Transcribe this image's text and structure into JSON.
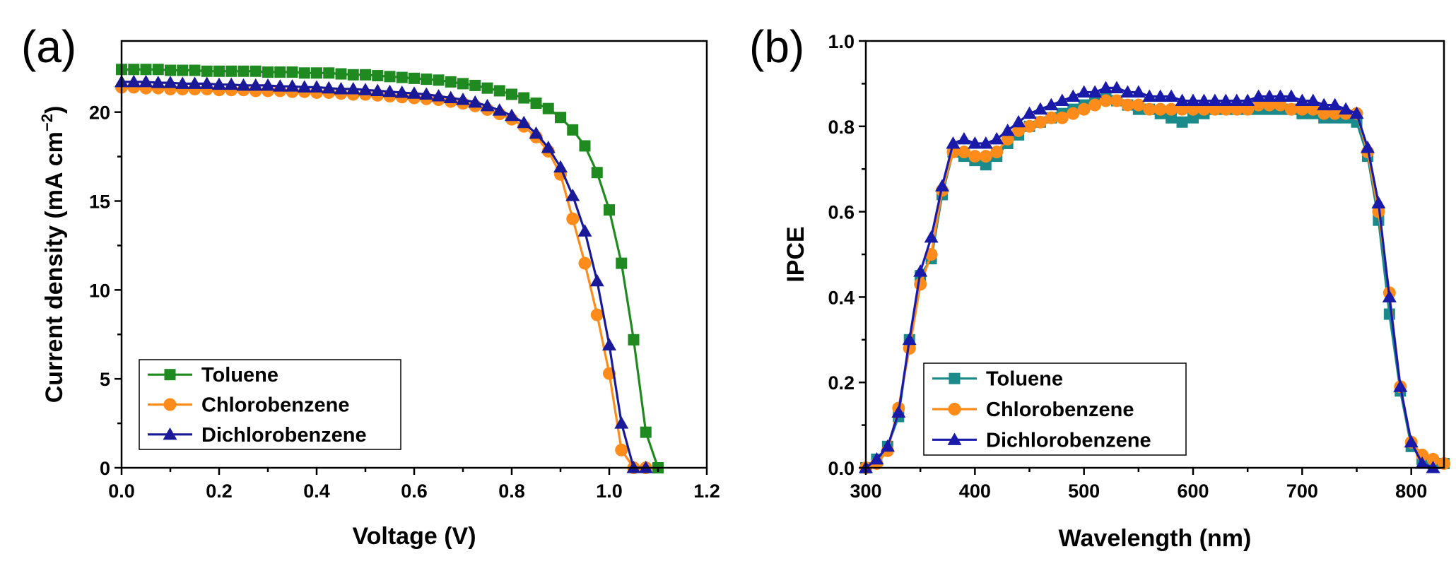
{
  "chart_data": [
    {
      "type": "line",
      "panel_label": "(a)",
      "xlabel": "Voltage (V)",
      "ylabel": "Current density (mA cm⁻²)",
      "ylabel_main": "Current density (mA cm",
      "ylabel_sup": "−2",
      "ylabel_end": ")",
      "xlim": [
        0.0,
        1.2
      ],
      "ylim": [
        0,
        24
      ],
      "xticks": [
        0.0,
        0.2,
        0.4,
        0.6,
        0.8,
        1.0,
        1.2
      ],
      "xtick_labels": [
        "0.0",
        "0.2",
        "0.4",
        "0.6",
        "0.8",
        "1.0",
        "1.2"
      ],
      "yticks": [
        0,
        5,
        10,
        15,
        20
      ],
      "ytick_labels": [
        "0",
        "5",
        "10",
        "15",
        "20"
      ],
      "legend_position": "bottom-left",
      "grid": false,
      "series": [
        {
          "name": "Toluene",
          "color": "#1f8a1f",
          "marker": "square",
          "x": [
            0.0,
            0.025,
            0.05,
            0.075,
            0.1,
            0.125,
            0.15,
            0.175,
            0.2,
            0.225,
            0.25,
            0.275,
            0.3,
            0.325,
            0.35,
            0.375,
            0.4,
            0.425,
            0.45,
            0.475,
            0.5,
            0.525,
            0.55,
            0.575,
            0.6,
            0.625,
            0.65,
            0.675,
            0.7,
            0.725,
            0.75,
            0.775,
            0.8,
            0.825,
            0.85,
            0.875,
            0.9,
            0.925,
            0.95,
            0.975,
            1.0,
            1.025,
            1.05,
            1.075,
            1.1
          ],
          "y": [
            22.4,
            22.4,
            22.4,
            22.4,
            22.35,
            22.35,
            22.35,
            22.3,
            22.3,
            22.3,
            22.3,
            22.3,
            22.25,
            22.25,
            22.25,
            22.2,
            22.2,
            22.2,
            22.15,
            22.1,
            22.1,
            22.05,
            22.0,
            21.95,
            21.9,
            21.85,
            21.8,
            21.7,
            21.6,
            21.5,
            21.35,
            21.2,
            21.0,
            20.8,
            20.5,
            20.2,
            19.7,
            19.0,
            18.1,
            16.6,
            14.5,
            11.5,
            7.2,
            2.0,
            0.0
          ]
        },
        {
          "name": "Chlorobenzene",
          "color": "#ff8c1a",
          "marker": "circle",
          "x": [
            0.0,
            0.025,
            0.05,
            0.075,
            0.1,
            0.125,
            0.15,
            0.175,
            0.2,
            0.225,
            0.25,
            0.275,
            0.3,
            0.325,
            0.35,
            0.375,
            0.4,
            0.425,
            0.45,
            0.475,
            0.5,
            0.525,
            0.55,
            0.575,
            0.6,
            0.625,
            0.65,
            0.675,
            0.7,
            0.725,
            0.75,
            0.775,
            0.8,
            0.825,
            0.85,
            0.875,
            0.9,
            0.925,
            0.95,
            0.975,
            1.0,
            1.025,
            1.05,
            1.075
          ],
          "y": [
            21.4,
            21.4,
            21.35,
            21.35,
            21.3,
            21.3,
            21.3,
            21.3,
            21.25,
            21.25,
            21.25,
            21.2,
            21.2,
            21.2,
            21.15,
            21.15,
            21.1,
            21.1,
            21.05,
            21.0,
            21.0,
            20.95,
            20.9,
            20.85,
            20.8,
            20.75,
            20.7,
            20.6,
            20.5,
            20.35,
            20.15,
            19.9,
            19.6,
            19.2,
            18.6,
            17.8,
            16.5,
            14.0,
            11.5,
            8.6,
            5.3,
            1.0,
            0.0,
            0.0
          ]
        },
        {
          "name": "Dichlorobenzene",
          "color": "#1a1a99",
          "marker": "triangle",
          "x": [
            0.0,
            0.025,
            0.05,
            0.075,
            0.1,
            0.125,
            0.15,
            0.175,
            0.2,
            0.225,
            0.25,
            0.275,
            0.3,
            0.325,
            0.35,
            0.375,
            0.4,
            0.425,
            0.45,
            0.475,
            0.5,
            0.525,
            0.55,
            0.575,
            0.6,
            0.625,
            0.65,
            0.675,
            0.7,
            0.725,
            0.75,
            0.775,
            0.8,
            0.825,
            0.85,
            0.875,
            0.9,
            0.925,
            0.95,
            0.975,
            1.0,
            1.025,
            1.05,
            1.075
          ],
          "y": [
            21.7,
            21.7,
            21.7,
            21.65,
            21.65,
            21.6,
            21.6,
            21.6,
            21.55,
            21.55,
            21.5,
            21.5,
            21.5,
            21.45,
            21.45,
            21.4,
            21.4,
            21.35,
            21.3,
            21.3,
            21.25,
            21.2,
            21.15,
            21.1,
            21.05,
            21.0,
            20.9,
            20.8,
            20.7,
            20.55,
            20.35,
            20.1,
            19.8,
            19.4,
            18.8,
            18.0,
            16.9,
            15.3,
            13.3,
            10.5,
            6.9,
            2.5,
            0.0,
            0.0
          ]
        }
      ]
    },
    {
      "type": "line",
      "panel_label": "(b)",
      "xlabel": "Wavelength (nm)",
      "ylabel": "IPCE",
      "xlim": [
        300,
        830
      ],
      "ylim": [
        0.0,
        1.0
      ],
      "xticks": [
        300,
        400,
        500,
        600,
        700,
        800
      ],
      "xtick_labels": [
        "300",
        "400",
        "500",
        "600",
        "700",
        "800"
      ],
      "yticks": [
        0.0,
        0.2,
        0.4,
        0.6,
        0.8,
        1.0
      ],
      "ytick_labels": [
        "0.0",
        "0.2",
        "0.4",
        "0.6",
        "0.8",
        "1.0"
      ],
      "legend_position": "bottom-left",
      "grid": false,
      "series": [
        {
          "name": "Toluene",
          "color": "#1a8a8a",
          "marker": "square",
          "x": [
            300,
            310,
            320,
            330,
            340,
            350,
            360,
            370,
            380,
            390,
            400,
            410,
            420,
            430,
            440,
            450,
            460,
            470,
            480,
            490,
            500,
            510,
            520,
            530,
            540,
            550,
            560,
            570,
            580,
            590,
            600,
            610,
            620,
            630,
            640,
            650,
            660,
            670,
            680,
            690,
            700,
            710,
            720,
            730,
            740,
            750,
            760,
            770,
            780,
            790,
            800,
            810,
            820,
            830
          ],
          "y": [
            0.0,
            0.02,
            0.05,
            0.12,
            0.3,
            0.45,
            0.49,
            0.64,
            0.74,
            0.73,
            0.72,
            0.71,
            0.73,
            0.76,
            0.78,
            0.8,
            0.81,
            0.82,
            0.83,
            0.84,
            0.85,
            0.86,
            0.87,
            0.86,
            0.85,
            0.84,
            0.84,
            0.83,
            0.82,
            0.81,
            0.82,
            0.83,
            0.84,
            0.84,
            0.84,
            0.84,
            0.84,
            0.84,
            0.84,
            0.84,
            0.83,
            0.83,
            0.82,
            0.82,
            0.82,
            0.81,
            0.73,
            0.58,
            0.36,
            0.18,
            0.05,
            0.02,
            0.01,
            0.01
          ]
        },
        {
          "name": "Chlorobenzene",
          "color": "#ff8c1a",
          "marker": "circle",
          "x": [
            300,
            310,
            320,
            330,
            340,
            350,
            360,
            370,
            380,
            390,
            400,
            410,
            420,
            430,
            440,
            450,
            460,
            470,
            480,
            490,
            500,
            510,
            520,
            530,
            540,
            550,
            560,
            570,
            580,
            590,
            600,
            610,
            620,
            630,
            640,
            650,
            660,
            670,
            680,
            690,
            700,
            710,
            720,
            730,
            740,
            750,
            760,
            770,
            780,
            790,
            800,
            810,
            820,
            830
          ],
          "y": [
            0.0,
            0.01,
            0.04,
            0.14,
            0.28,
            0.43,
            0.5,
            0.65,
            0.74,
            0.74,
            0.73,
            0.73,
            0.74,
            0.77,
            0.79,
            0.8,
            0.81,
            0.82,
            0.82,
            0.83,
            0.84,
            0.85,
            0.86,
            0.86,
            0.85,
            0.85,
            0.84,
            0.84,
            0.84,
            0.84,
            0.84,
            0.84,
            0.84,
            0.84,
            0.84,
            0.84,
            0.85,
            0.85,
            0.85,
            0.84,
            0.84,
            0.84,
            0.83,
            0.83,
            0.83,
            0.83,
            0.74,
            0.6,
            0.41,
            0.19,
            0.06,
            0.03,
            0.02,
            0.01
          ]
        },
        {
          "name": "Dichlorobenzene",
          "color": "#1a1aaa",
          "marker": "triangle",
          "x": [
            300,
            310,
            320,
            330,
            340,
            350,
            360,
            370,
            380,
            390,
            400,
            410,
            420,
            430,
            440,
            450,
            460,
            470,
            480,
            490,
            500,
            510,
            520,
            530,
            540,
            550,
            560,
            570,
            580,
            590,
            600,
            610,
            620,
            630,
            640,
            650,
            660,
            670,
            680,
            690,
            700,
            710,
            720,
            730,
            740,
            750,
            760,
            770,
            780,
            790,
            800,
            810,
            820
          ],
          "y": [
            0.0,
            0.02,
            0.05,
            0.13,
            0.3,
            0.46,
            0.54,
            0.66,
            0.76,
            0.77,
            0.76,
            0.76,
            0.77,
            0.79,
            0.81,
            0.83,
            0.84,
            0.85,
            0.86,
            0.87,
            0.88,
            0.88,
            0.89,
            0.89,
            0.88,
            0.88,
            0.87,
            0.87,
            0.87,
            0.86,
            0.86,
            0.86,
            0.86,
            0.86,
            0.86,
            0.86,
            0.87,
            0.87,
            0.87,
            0.87,
            0.86,
            0.86,
            0.85,
            0.85,
            0.84,
            0.83,
            0.75,
            0.62,
            0.4,
            0.19,
            0.06,
            0.01,
            0.0
          ]
        }
      ]
    }
  ]
}
